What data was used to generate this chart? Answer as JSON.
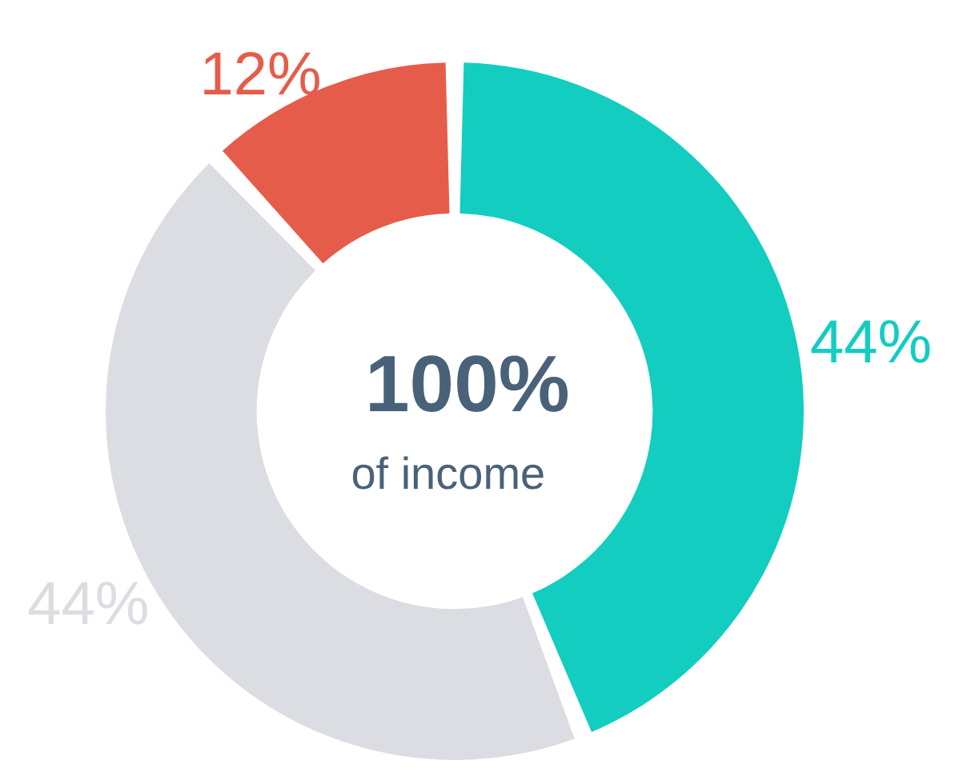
{
  "chart_data": {
    "type": "donut",
    "categories": [
      null,
      null,
      null
    ],
    "values": [
      44,
      44,
      12
    ],
    "colors": [
      "#12cdc0",
      "#dcdde2",
      "#e65c4b"
    ],
    "value_labels": [
      "44%",
      "44%",
      "12%"
    ],
    "annotations": [
      "100%",
      "of income"
    ]
  }
}
